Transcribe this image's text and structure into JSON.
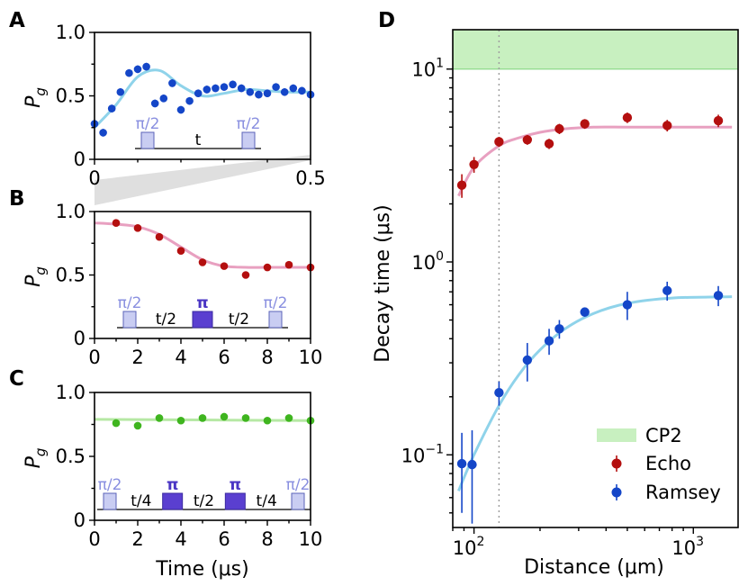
{
  "chart_data": [
    {
      "panel": "A",
      "type": "scatter",
      "ylabel": "P",
      "ylabel_sub": "g",
      "xlim": [
        0,
        0.5
      ],
      "ylim": [
        0,
        1.0
      ],
      "xticks": [
        0,
        0.5
      ],
      "xtick_labels": [
        "0",
        "0.5"
      ],
      "yticks": [
        0,
        0.5,
        1.0
      ],
      "ytick_labels": [
        "0",
        "0.5",
        "1.0"
      ],
      "series": [
        {
          "name": "Ramsey",
          "color": "#1446c8",
          "fit_color": "#8fd3ea",
          "x": [
            0,
            0.02,
            0.04,
            0.06,
            0.08,
            0.1,
            0.12,
            0.14,
            0.16,
            0.18,
            0.2,
            0.22,
            0.24,
            0.26,
            0.28,
            0.3,
            0.32,
            0.34,
            0.36,
            0.38,
            0.4,
            0.42,
            0.44,
            0.46,
            0.48,
            0.5
          ],
          "y": [
            0.28,
            0.21,
            0.4,
            0.53,
            0.68,
            0.71,
            0.73,
            0.44,
            0.48,
            0.6,
            0.39,
            0.46,
            0.52,
            0.55,
            0.56,
            0.57,
            0.59,
            0.56,
            0.53,
            0.51,
            0.52,
            0.57,
            0.53,
            0.56,
            0.54,
            0.51
          ],
          "yerr": [
            0.03,
            0.03,
            0.03,
            0.03,
            0.03,
            0.03,
            0.03,
            0.03,
            0.03,
            0.03,
            0.03,
            0.03,
            0.03,
            0.03,
            0.03,
            0.03,
            0.03,
            0.03,
            0.03,
            0.03,
            0.03,
            0.03,
            0.03,
            0.03,
            0.03,
            0.03
          ]
        }
      ],
      "fit": {
        "x": [
          0,
          0.05,
          0.1,
          0.15,
          0.2,
          0.25,
          0.3,
          0.35,
          0.4,
          0.45,
          0.5
        ],
        "y": [
          0.25,
          0.43,
          0.65,
          0.7,
          0.58,
          0.5,
          0.52,
          0.55,
          0.54,
          0.53,
          0.53
        ]
      },
      "sequence": [
        {
          "kind": "pulse",
          "label": "π/2"
        },
        {
          "kind": "wait",
          "label": "t"
        },
        {
          "kind": "pulse",
          "label": "π/2"
        }
      ]
    },
    {
      "panel": "B",
      "type": "scatter",
      "ylabel": "P",
      "ylabel_sub": "g",
      "xlim": [
        0,
        10
      ],
      "ylim": [
        0,
        1.0
      ],
      "xticks": [
        0,
        2,
        4,
        6,
        8,
        10
      ],
      "xtick_labels": [
        "0",
        "2",
        "4",
        "6",
        "8",
        "10"
      ],
      "yticks": [
        0,
        0.5,
        1.0
      ],
      "ytick_labels": [
        "0",
        "0.5",
        "1.0"
      ],
      "series": [
        {
          "name": "Echo",
          "color": "#b40f0f",
          "fit_color": "#e8a0c0",
          "x": [
            1,
            2,
            3,
            4,
            5,
            6,
            7,
            8,
            9,
            10
          ],
          "y": [
            0.91,
            0.87,
            0.8,
            0.69,
            0.6,
            0.57,
            0.5,
            0.56,
            0.58,
            0.56
          ]
        }
      ],
      "fit": {
        "x": [
          0,
          1,
          2,
          3,
          4,
          5,
          6,
          7,
          8,
          9,
          10
        ],
        "y": [
          0.91,
          0.9,
          0.88,
          0.82,
          0.72,
          0.62,
          0.57,
          0.56,
          0.56,
          0.56,
          0.56
        ]
      },
      "sequence": [
        {
          "kind": "pulse",
          "label": "π/2"
        },
        {
          "kind": "wait",
          "label": "t/2"
        },
        {
          "kind": "pi",
          "label": "π"
        },
        {
          "kind": "wait",
          "label": "t/2"
        },
        {
          "kind": "pulse",
          "label": "π/2"
        }
      ]
    },
    {
      "panel": "C",
      "type": "scatter",
      "xlabel": "Time (μs)",
      "ylabel": "P",
      "ylabel_sub": "g",
      "xlim": [
        0,
        10
      ],
      "ylim": [
        0,
        1.0
      ],
      "xticks": [
        0,
        2,
        4,
        6,
        8,
        10
      ],
      "xtick_labels": [
        "0",
        "2",
        "4",
        "6",
        "8",
        "10"
      ],
      "yticks": [
        0,
        0.5,
        1.0
      ],
      "ytick_labels": [
        "0",
        "0.5",
        "1.0"
      ],
      "series": [
        {
          "name": "CP2",
          "color": "#3fb51f",
          "fit_color": "#b6e8a4",
          "x": [
            1,
            2,
            3,
            4,
            5,
            6,
            7,
            8,
            9,
            10
          ],
          "y": [
            0.76,
            0.74,
            0.8,
            0.78,
            0.8,
            0.81,
            0.8,
            0.78,
            0.8,
            0.78
          ]
        }
      ],
      "fit": {
        "x": [
          0,
          10
        ],
        "y": [
          0.79,
          0.78
        ]
      },
      "sequence": [
        {
          "kind": "pulse",
          "label": "π/2"
        },
        {
          "kind": "wait",
          "label": "t/4"
        },
        {
          "kind": "pi",
          "label": "π"
        },
        {
          "kind": "wait",
          "label": "t/2"
        },
        {
          "kind": "pi",
          "label": "π"
        },
        {
          "kind": "wait",
          "label": "t/4"
        },
        {
          "kind": "pulse",
          "label": "π/2"
        }
      ]
    },
    {
      "panel": "D",
      "type": "scatter",
      "xscale": "log",
      "yscale": "log",
      "xlabel": "Distance (μm)",
      "ylabel": "Decay time (μs)",
      "xlim": [
        80,
        1600
      ],
      "ylim": [
        0.042,
        16
      ],
      "xtick_labels": [
        "10",
        "10"
      ],
      "xtick_exponents": [
        "2",
        "3"
      ],
      "xtick_values": [
        100,
        1000
      ],
      "ytick_labels": [
        "10",
        "10",
        "10"
      ],
      "ytick_exponents": [
        "−1",
        "0",
        "1"
      ],
      "ytick_values": [
        0.1,
        1,
        10
      ],
      "vline_x": 130,
      "band": {
        "name": "CP2",
        "y_range": [
          10,
          16
        ],
        "color": "#c8f0c0"
      },
      "legend_position": "lower-right",
      "series": [
        {
          "name": "Echo",
          "color": "#b40f0f",
          "fit_color": "#e8a0c0",
          "x": [
            88,
            100,
            130,
            175,
            220,
            245,
            320,
            500,
            760,
            1300
          ],
          "y": [
            2.5,
            3.2,
            4.2,
            4.3,
            4.1,
            4.9,
            5.2,
            5.6,
            5.1,
            5.4
          ],
          "yerr": [
            0.35,
            0.3,
            0.25,
            0.25,
            0.25,
            0.3,
            0.3,
            0.35,
            0.35,
            0.4
          ]
        },
        {
          "name": "Ramsey",
          "color": "#1446c8",
          "fit_color": "#8fd3ea",
          "x": [
            88,
            98,
            130,
            175,
            220,
            245,
            320,
            500,
            760,
            1300
          ],
          "y": [
            0.09,
            0.089,
            0.21,
            0.31,
            0.39,
            0.45,
            0.55,
            0.6,
            0.71,
            0.67
          ],
          "yerr": [
            0.04,
            0.045,
            0.03,
            0.07,
            0.06,
            0.05,
            0.03,
            0.1,
            0.08,
            0.08
          ]
        }
      ],
      "fit_echo": {
        "x": [
          85,
          100,
          130,
          160,
          200,
          260,
          350,
          500,
          800,
          1500
        ],
        "y": [
          2.2,
          3.1,
          4.0,
          4.4,
          4.7,
          4.9,
          5.0,
          5.0,
          5.0,
          5.0
        ]
      },
      "fit_ramsey": {
        "x": [
          85,
          100,
          130,
          160,
          200,
          260,
          350,
          500,
          800,
          1500
        ],
        "y": [
          0.065,
          0.1,
          0.18,
          0.26,
          0.35,
          0.45,
          0.54,
          0.61,
          0.65,
          0.66
        ]
      }
    }
  ]
}
